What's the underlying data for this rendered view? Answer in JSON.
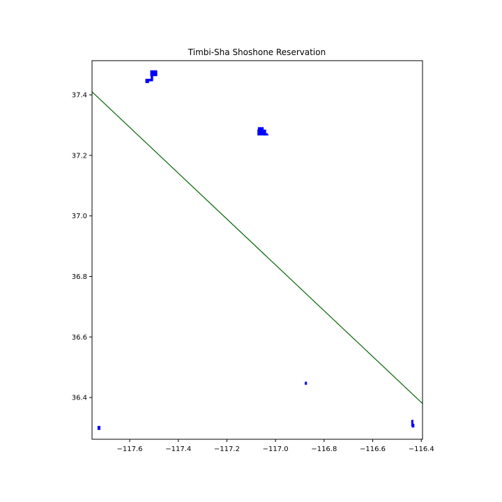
{
  "chart_data": {
    "type": "map",
    "title": "Timbi-Sha Shoshone Reservation",
    "xlabel": "",
    "ylabel": "",
    "xlim": [
      -117.755,
      -116.395
    ],
    "ylim": [
      36.262,
      37.513
    ],
    "grid": false,
    "x_ticks": [
      {
        "value": -117.6,
        "label": "−117.6"
      },
      {
        "value": -117.4,
        "label": "−117.4"
      },
      {
        "value": -117.2,
        "label": "−117.2"
      },
      {
        "value": -117.0,
        "label": "−117.0"
      },
      {
        "value": -116.8,
        "label": "−116.8"
      },
      {
        "value": -116.6,
        "label": "−116.6"
      },
      {
        "value": -116.4,
        "label": "−116.4"
      }
    ],
    "y_ticks": [
      {
        "value": 36.4,
        "label": "36.4"
      },
      {
        "value": 36.6,
        "label": "36.6"
      },
      {
        "value": 36.8,
        "label": "36.8"
      },
      {
        "value": 37.0,
        "label": "37.0"
      },
      {
        "value": 37.2,
        "label": "37.2"
      },
      {
        "value": 37.4,
        "label": "37.4"
      }
    ],
    "boundary_line": {
      "color": "#006400",
      "points": [
        [
          -117.755,
          37.41
        ],
        [
          -116.395,
          36.38
        ]
      ]
    },
    "reservation_parcels": {
      "color": "#0000ff",
      "polygons": [
        [
          [
            -117.514,
            37.463
          ],
          [
            -117.488,
            37.463
          ],
          [
            -117.488,
            37.48
          ],
          [
            -117.514,
            37.48
          ]
        ],
        [
          [
            -117.512,
            37.448
          ],
          [
            -117.505,
            37.448
          ],
          [
            -117.505,
            37.465
          ],
          [
            -117.512,
            37.465
          ]
        ],
        [
          [
            -117.522,
            37.446
          ],
          [
            -117.506,
            37.446
          ],
          [
            -117.506,
            37.452
          ],
          [
            -117.522,
            37.452
          ]
        ],
        [
          [
            -117.534,
            37.44
          ],
          [
            -117.522,
            37.44
          ],
          [
            -117.522,
            37.452
          ],
          [
            -117.534,
            37.452
          ]
        ],
        [
          [
            -117.073,
            37.267
          ],
          [
            -117.04,
            37.267
          ],
          [
            -117.04,
            37.284
          ],
          [
            -117.073,
            37.284
          ]
        ],
        [
          [
            -117.071,
            37.284
          ],
          [
            -117.05,
            37.284
          ],
          [
            -117.05,
            37.292
          ],
          [
            -117.071,
            37.292
          ]
        ],
        [
          [
            -117.045,
            37.267
          ],
          [
            -117.03,
            37.267
          ],
          [
            -117.035,
            37.273
          ]
        ],
        [
          [
            -116.878,
            36.443
          ],
          [
            -116.872,
            36.443
          ],
          [
            -116.872,
            36.451
          ],
          [
            -116.878,
            36.451
          ]
        ],
        [
          [
            -117.731,
            36.294
          ],
          [
            -117.722,
            36.294
          ],
          [
            -117.722,
            36.305
          ],
          [
            -117.731,
            36.305
          ]
        ],
        [
          [
            -116.44,
            36.306
          ],
          [
            -116.434,
            36.306
          ],
          [
            -116.434,
            36.325
          ],
          [
            -116.44,
            36.325
          ]
        ],
        [
          [
            -116.438,
            36.302
          ],
          [
            -116.43,
            36.302
          ],
          [
            -116.43,
            36.312
          ],
          [
            -116.438,
            36.312
          ]
        ]
      ]
    }
  }
}
